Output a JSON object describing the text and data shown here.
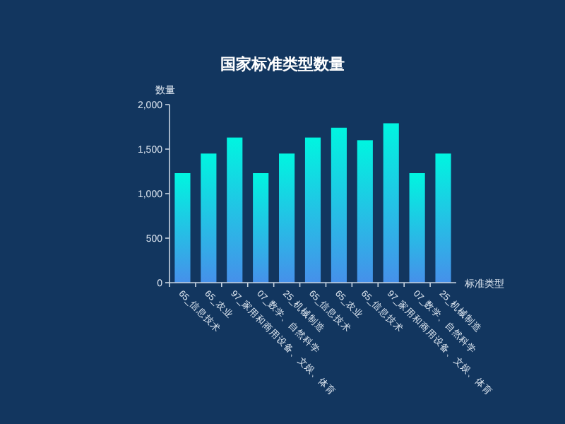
{
  "chart_data": {
    "type": "bar",
    "title": "国家标准类型数量",
    "xlabel": "标准类型",
    "ylabel": "数量",
    "categories": [
      "65_信息技术",
      "65_农业",
      "97_家用和商用设备、文娱、体育",
      "07_数学、自然科学",
      "25_机械制造",
      "65_信息技术",
      "65_农业",
      "65_信息技术",
      "97_家用和商用设备、文娱、体育",
      "07_数学、自然科学",
      "25_机械制造"
    ],
    "series": [
      {
        "color": "#00f5e0",
        "values": [
          1230,
          1450,
          1630,
          1230,
          1450,
          1630,
          1740,
          1600,
          1790,
          1230,
          1450
        ]
      }
    ],
    "ylim": [
      0,
      2000
    ],
    "yticks": [
      {
        "value": 0,
        "label": "0"
      },
      {
        "value": 500,
        "label": "500"
      },
      {
        "value": 1000,
        "label": "1,000"
      },
      {
        "value": 1500,
        "label": "1,500"
      },
      {
        "value": 2000,
        "label": "2,000"
      }
    ],
    "grid": false
  }
}
